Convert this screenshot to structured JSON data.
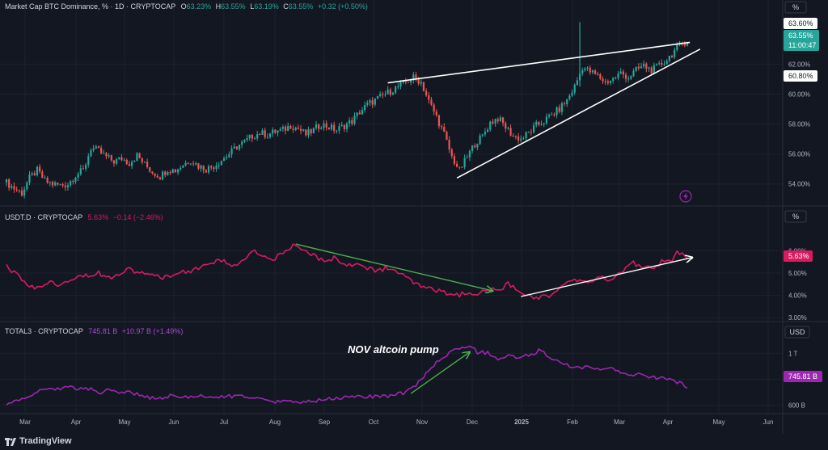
{
  "header": {
    "main_title": "Market Cap BTC Dominance, % · 1D · CRYPTOCAP",
    "ohlc": [
      {
        "k": "O",
        "v": "63.23%"
      },
      {
        "k": "H",
        "v": "63.55%"
      },
      {
        "k": "L",
        "v": "63.19%"
      },
      {
        "k": "C",
        "v": "63.55%"
      },
      {
        "k": "chg",
        "v": "+0.32 (+0.50%)"
      }
    ],
    "usdt_title": "USDT.D · CRYPTOCAP",
    "usdt_value": "5.63%",
    "usdt_change": "−0.14 (−2.46%)",
    "total3_title": "TOTAL3 · CRYPTOCAP",
    "total3_value": "745.81 B",
    "total3_change": "+10.97 B (+1.49%)"
  },
  "scale_buttons": {
    "main": "%",
    "usdt": "%",
    "total3": "USD"
  },
  "price_labels": {
    "top": "63.60%",
    "current": "63.55%",
    "countdown": "11:00:47",
    "mid": "60.80%",
    "usdt_current": "5.63%",
    "total3_current": "745.81 B"
  },
  "annotation": "NOV altcoin pump",
  "brand": "TradingView",
  "colors": {
    "bg": "#131722",
    "up": "#26a69a",
    "down": "#ef5350",
    "usdt": "#d81b60",
    "total3": "#9c27b0",
    "arrow_green": "#4caf50",
    "line_white": "#ffffff",
    "text": "#b2b5be"
  },
  "chart_data": [
    {
      "type": "candlestick",
      "title": "Market Cap BTC Dominance, % · 1D · CRYPTOCAP",
      "ylabel": "%",
      "ylim": [
        52.8,
        65.2
      ],
      "y_ticks": [
        "54.00%",
        "56.00%",
        "58.00%",
        "60.00%",
        "62.00%"
      ],
      "x": [
        "Mar",
        "Apr",
        "May",
        "Jun",
        "Jul",
        "Aug",
        "Sep",
        "Oct",
        "Nov",
        "Dec",
        "2025",
        "Feb",
        "Mar",
        "Apr"
      ],
      "close_path": [
        [
          0,
          54.1
        ],
        [
          3,
          53.7
        ],
        [
          6,
          53.4
        ],
        [
          9,
          54.4
        ],
        [
          12,
          54.9
        ],
        [
          15,
          54.2
        ],
        [
          18,
          54.0
        ],
        [
          21,
          53.9
        ],
        [
          24,
          54.0
        ],
        [
          27,
          54.6
        ],
        [
          30,
          54.9
        ],
        [
          33,
          56.4
        ],
        [
          36,
          56.2
        ],
        [
          39,
          55.8
        ],
        [
          42,
          55.5
        ],
        [
          45,
          55.7
        ],
        [
          48,
          55.4
        ],
        [
          51,
          55.9
        ],
        [
          54,
          55.3
        ],
        [
          57,
          54.8
        ],
        [
          60,
          54.5
        ],
        [
          63,
          55.0
        ],
        [
          66,
          54.9
        ],
        [
          69,
          55.3
        ],
        [
          72,
          55.6
        ],
        [
          75,
          55.2
        ],
        [
          78,
          55.0
        ],
        [
          81,
          55.2
        ],
        [
          84,
          55.6
        ],
        [
          87,
          56.0
        ],
        [
          90,
          56.5
        ],
        [
          93,
          56.8
        ],
        [
          96,
          57.2
        ],
        [
          99,
          57.4
        ],
        [
          102,
          57.3
        ],
        [
          105,
          57.5
        ],
        [
          108,
          57.6
        ],
        [
          111,
          57.9
        ],
        [
          114,
          57.7
        ],
        [
          117,
          57.3
        ],
        [
          120,
          57.6
        ],
        [
          123,
          58.0
        ],
        [
          126,
          57.8
        ],
        [
          129,
          57.6
        ],
        [
          132,
          57.9
        ],
        [
          135,
          58.2
        ],
        [
          138,
          58.8
        ],
        [
          141,
          59.3
        ],
        [
          144,
          59.6
        ],
        [
          147,
          59.9
        ],
        [
          150,
          60.2
        ],
        [
          153,
          60.5
        ],
        [
          156,
          60.8
        ],
        [
          159,
          61.1
        ],
        [
          162,
          60.8
        ],
        [
          165,
          59.5
        ],
        [
          168,
          58.5
        ],
        [
          171,
          57.3
        ],
        [
          174,
          55.8
        ],
        [
          177,
          54.9
        ],
        [
          180,
          55.8
        ],
        [
          183,
          56.7
        ],
        [
          186,
          57.2
        ],
        [
          189,
          58.1
        ],
        [
          192,
          58.4
        ],
        [
          195,
          57.8
        ],
        [
          198,
          57.2
        ],
        [
          201,
          57.0
        ],
        [
          204,
          57.4
        ],
        [
          207,
          57.9
        ],
        [
          210,
          58.2
        ],
        [
          213,
          58.6
        ],
        [
          216,
          59.0
        ],
        [
          219,
          59.6
        ],
        [
          222,
          60.5
        ],
        [
          225,
          61.8
        ],
        [
          228,
          61.5
        ],
        [
          231,
          61.2
        ],
        [
          234,
          60.8
        ],
        [
          237,
          61.0
        ],
        [
          240,
          61.4
        ],
        [
          243,
          61.1
        ],
        [
          246,
          61.6
        ],
        [
          249,
          61.9
        ],
        [
          252,
          61.6
        ],
        [
          255,
          61.9
        ],
        [
          258,
          62.3
        ],
        [
          261,
          62.9
        ],
        [
          264,
          63.4
        ],
        [
          266,
          63.55
        ]
      ],
      "annotations": [
        {
          "type": "trendline",
          "from": [
            149,
            60.75
          ],
          "to": [
            267,
            63.45
          ]
        },
        {
          "type": "trendline",
          "from": [
            176,
            54.4
          ],
          "to": [
            271,
            63.0
          ]
        }
      ]
    },
    {
      "type": "line",
      "title": "USDT.D · CRYPTOCAP",
      "ylabel": "%",
      "ylim": [
        2.9,
        7.1
      ],
      "y_ticks": [
        "3.00%",
        "4.00%",
        "5.00%",
        "6.00%"
      ],
      "series": [
        {
          "name": "USDT.D",
          "values": [
            [
              0,
              5.3
            ],
            [
              4,
              4.9
            ],
            [
              8,
              4.5
            ],
            [
              12,
              4.3
            ],
            [
              16,
              4.6
            ],
            [
              20,
              4.5
            ],
            [
              24,
              4.7
            ],
            [
              28,
              4.9
            ],
            [
              32,
              4.9
            ],
            [
              36,
              5.0
            ],
            [
              40,
              4.8
            ],
            [
              44,
              5.0
            ],
            [
              48,
              5.2
            ],
            [
              52,
              5.0
            ],
            [
              56,
              4.9
            ],
            [
              60,
              4.8
            ],
            [
              64,
              4.9
            ],
            [
              68,
              5.0
            ],
            [
              72,
              5.1
            ],
            [
              76,
              5.3
            ],
            [
              80,
              5.4
            ],
            [
              84,
              5.6
            ],
            [
              88,
              5.3
            ],
            [
              92,
              5.5
            ],
            [
              96,
              6.0
            ],
            [
              100,
              5.8
            ],
            [
              104,
              5.6
            ],
            [
              108,
              5.9
            ],
            [
              112,
              6.2
            ],
            [
              116,
              6.0
            ],
            [
              120,
              5.8
            ],
            [
              124,
              5.5
            ],
            [
              128,
              5.7
            ],
            [
              132,
              5.4
            ],
            [
              136,
              5.4
            ],
            [
              140,
              5.3
            ],
            [
              144,
              5.1
            ],
            [
              148,
              5.2
            ],
            [
              152,
              5.1
            ],
            [
              156,
              4.8
            ],
            [
              160,
              4.5
            ],
            [
              164,
              4.3
            ],
            [
              168,
              4.2
            ],
            [
              172,
              4.1
            ],
            [
              176,
              4.0
            ],
            [
              180,
              4.1
            ],
            [
              184,
              4.0
            ],
            [
              188,
              4.3
            ],
            [
              192,
              4.2
            ],
            [
              196,
              4.5
            ],
            [
              200,
              4.2
            ],
            [
              204,
              4.0
            ],
            [
              208,
              3.9
            ],
            [
              212,
              4.0
            ],
            [
              216,
              4.3
            ],
            [
              220,
              4.6
            ],
            [
              224,
              4.7
            ],
            [
              228,
              4.6
            ],
            [
              232,
              4.8
            ],
            [
              236,
              4.7
            ],
            [
              240,
              5.0
            ],
            [
              244,
              5.5
            ],
            [
              248,
              5.3
            ],
            [
              252,
              5.2
            ],
            [
              256,
              5.5
            ],
            [
              260,
              5.6
            ],
            [
              262,
              6.0
            ],
            [
              266,
              5.63
            ]
          ]
        }
      ],
      "annotations": [
        {
          "type": "arrow",
          "from": [
            113,
            6.3
          ],
          "to": [
            190,
            4.2
          ]
        },
        {
          "type": "arrow",
          "from": [
            201,
            3.95
          ],
          "to": [
            268,
            5.7
          ]
        }
      ]
    },
    {
      "type": "line",
      "title": "TOTAL3 · CRYPTOCAP",
      "ylabel": "USD",
      "ylim": [
        560,
        1120
      ],
      "y_ticks": [
        "600 B",
        "800 B",
        "1 T"
      ],
      "series": [
        {
          "name": "TOTAL3",
          "values": [
            [
              0,
              615
            ],
            [
              4,
              630
            ],
            [
              8,
              660
            ],
            [
              12,
              700
            ],
            [
              16,
              730
            ],
            [
              20,
              725
            ],
            [
              24,
              750
            ],
            [
              28,
              720
            ],
            [
              32,
              730
            ],
            [
              36,
              700
            ],
            [
              40,
              710
            ],
            [
              44,
              690
            ],
            [
              48,
              700
            ],
            [
              52,
              680
            ],
            [
              56,
              660
            ],
            [
              60,
              655
            ],
            [
              64,
              670
            ],
            [
              68,
              665
            ],
            [
              72,
              660
            ],
            [
              76,
              670
            ],
            [
              80,
              665
            ],
            [
              84,
              660
            ],
            [
              88,
              670
            ],
            [
              92,
              680
            ],
            [
              96,
              650
            ],
            [
              100,
              640
            ],
            [
              104,
              625
            ],
            [
              108,
              630
            ],
            [
              112,
              620
            ],
            [
              116,
              625
            ],
            [
              120,
              630
            ],
            [
              124,
              645
            ],
            [
              128,
              650
            ],
            [
              132,
              660
            ],
            [
              136,
              665
            ],
            [
              140,
              660
            ],
            [
              144,
              670
            ],
            [
              148,
              668
            ],
            [
              152,
              680
            ],
            [
              156,
              700
            ],
            [
              160,
              760
            ],
            [
              164,
              840
            ],
            [
              168,
              930
            ],
            [
              172,
              985
            ],
            [
              176,
              1040
            ],
            [
              180,
              1060
            ],
            [
              184,
              1010
            ],
            [
              188,
              1000
            ],
            [
              192,
              960
            ],
            [
              196,
              980
            ],
            [
              200,
              965
            ],
            [
              204,
              985
            ],
            [
              208,
              1020
            ],
            [
              212,
              975
            ],
            [
              216,
              930
            ],
            [
              220,
              900
            ],
            [
              224,
              880
            ],
            [
              228,
              895
            ],
            [
              232,
              870
            ],
            [
              236,
              880
            ],
            [
              240,
              850
            ],
            [
              244,
              820
            ],
            [
              248,
              840
            ],
            [
              252,
              815
            ],
            [
              256,
              810
            ],
            [
              260,
              800
            ],
            [
              264,
              760
            ],
            [
              266,
              746
            ]
          ]
        }
      ],
      "annotations": [
        {
          "type": "arrow",
          "from": [
            158,
            690
          ],
          "to": [
            181,
            1010
          ]
        }
      ]
    }
  ]
}
